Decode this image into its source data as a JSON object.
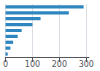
{
  "chart_data": {
    "type": "bar",
    "orientation": "horizontal",
    "categories": [
      null,
      null,
      null,
      null,
      null,
      null,
      null,
      null,
      null
    ],
    "values": [
      290,
      235,
      130,
      100,
      60,
      45,
      28,
      18,
      8
    ],
    "color": "#2e86c1",
    "xlim": [
      0,
      310
    ],
    "xticks": [
      0,
      100,
      200,
      300
    ],
    "grid": true,
    "tick_labels": "x"
  }
}
